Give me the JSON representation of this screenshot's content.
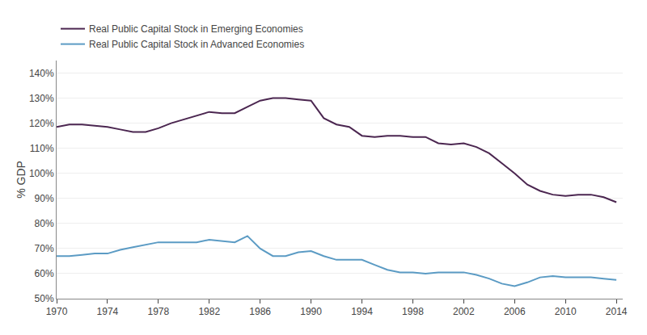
{
  "chart_data": {
    "type": "line",
    "x": [
      1970,
      1971,
      1972,
      1973,
      1974,
      1975,
      1976,
      1977,
      1978,
      1979,
      1980,
      1981,
      1982,
      1983,
      1984,
      1985,
      1986,
      1987,
      1988,
      1989,
      1990,
      1991,
      1992,
      1993,
      1994,
      1995,
      1996,
      1997,
      1998,
      1999,
      2000,
      2001,
      2002,
      2003,
      2004,
      2005,
      2006,
      2007,
      2008,
      2009,
      2010,
      2011,
      2012,
      2013,
      2014
    ],
    "series": [
      {
        "name": "Real Public Capital Stock in Emerging Economies",
        "color": "#4B2650",
        "values": [
          118.5,
          119.5,
          119.5,
          119.0,
          118.5,
          117.5,
          116.5,
          116.5,
          118.0,
          120.0,
          121.5,
          123.0,
          124.5,
          124.0,
          124.0,
          126.5,
          129.0,
          130.0,
          130.0,
          129.5,
          129.0,
          122.0,
          119.5,
          118.5,
          115.0,
          114.5,
          115.0,
          115.0,
          114.5,
          114.5,
          112.0,
          111.5,
          112.0,
          110.5,
          108.0,
          104.0,
          100.0,
          95.5,
          93.0,
          91.5,
          91.0,
          91.5,
          91.5,
          90.5,
          88.5
        ]
      },
      {
        "name": "Real Public Capital Stock in Advanced Economies",
        "color": "#5B9BC4",
        "values": [
          67.0,
          67.0,
          67.5,
          68.0,
          68.0,
          69.5,
          70.5,
          71.5,
          72.5,
          72.5,
          72.5,
          72.5,
          73.5,
          73.0,
          72.5,
          75.0,
          70.0,
          67.0,
          67.0,
          68.5,
          69.0,
          67.0,
          65.5,
          65.5,
          65.5,
          63.5,
          61.5,
          60.5,
          60.5,
          60.0,
          60.5,
          60.5,
          60.5,
          59.5,
          58.0,
          56.0,
          55.0,
          56.5,
          58.5,
          59.0,
          58.5,
          58.5,
          58.5,
          58.0,
          57.5
        ]
      }
    ],
    "y_label": "% GDP",
    "xlim": [
      1970,
      2014.5
    ],
    "xticks": [
      1970,
      1974,
      1978,
      1982,
      1986,
      1990,
      1994,
      1998,
      2002,
      2006,
      2010,
      2014
    ],
    "ylim": [
      50,
      145
    ],
    "yticks": [
      {
        "value": 50,
        "label": "50%"
      },
      {
        "value": 60,
        "label": "60%"
      },
      {
        "value": 70,
        "label": "70%"
      },
      {
        "value": 80,
        "label": "80%"
      },
      {
        "value": 90,
        "label": "90%"
      },
      {
        "value": 100,
        "label": "100%"
      },
      {
        "value": 110,
        "label": "110%"
      },
      {
        "value": 120,
        "label": "120%"
      },
      {
        "value": 130,
        "label": "130%"
      },
      {
        "value": 140,
        "label": "140%"
      }
    ],
    "grid": "y",
    "legend": "upper left"
  }
}
